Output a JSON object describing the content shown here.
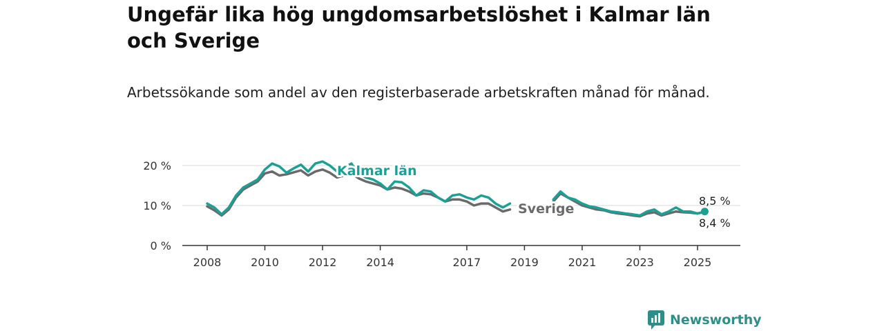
{
  "header": {
    "title": "Ungefär lika hög ungdomsarbetslöshet i Kalmar län och Sverige",
    "subtitle": "Arbetssökande som andel av den registerbaserade arbetskraften månad för månad."
  },
  "brand": {
    "name": "Newsworthy",
    "icon": "newsworthy-logo-icon",
    "color": "#2e8e89"
  },
  "chart_data": {
    "type": "line",
    "title": "Ungefär lika hög ungdomsarbetslöshet i Kalmar län och Sverige",
    "subtitle": "Arbetssökande som andel av den registerbaserade arbetskraften månad för månad.",
    "xlabel": "",
    "ylabel": "",
    "x_ticks": [
      "2008",
      "2010",
      "2012",
      "2014",
      "2017",
      "2019",
      "2021",
      "2023",
      "2025"
    ],
    "y_ticks": [
      "0 %",
      "10 %",
      "20 %"
    ],
    "ylim": [
      0,
      22
    ],
    "grid": true,
    "series": [
      {
        "name": "Kalmar län",
        "color": "#1aa196",
        "points": [
          [
            "2008-01",
            10.5
          ],
          [
            "2008-04",
            9.5
          ],
          [
            "2008-07",
            7.8
          ],
          [
            "2008-10",
            9.5
          ],
          [
            "2009-01",
            12.5
          ],
          [
            "2009-04",
            14.5
          ],
          [
            "2009-07",
            15.5
          ],
          [
            "2009-10",
            16.5
          ],
          [
            "2010-01",
            19.0
          ],
          [
            "2010-04",
            20.5
          ],
          [
            "2010-07",
            19.8
          ],
          [
            "2010-10",
            18.2
          ],
          [
            "2011-01",
            19.3
          ],
          [
            "2011-04",
            20.2
          ],
          [
            "2011-07",
            18.5
          ],
          [
            "2011-10",
            20.5
          ],
          [
            "2012-01",
            21.0
          ],
          [
            "2012-04",
            20.0
          ],
          [
            "2012-07",
            18.5
          ],
          [
            "2012-10",
            19.5
          ],
          [
            "2013-01",
            20.5
          ],
          [
            "2013-04",
            18.0
          ],
          [
            "2013-07",
            17.0
          ],
          [
            "2013-10",
            16.5
          ],
          [
            "2014-01",
            15.5
          ],
          [
            "2014-04",
            14.0
          ],
          [
            "2014-07",
            16.0
          ],
          [
            "2014-10",
            15.8
          ],
          [
            "2015-01",
            14.5
          ],
          [
            "2015-04",
            12.5
          ],
          [
            "2015-07",
            13.8
          ],
          [
            "2015-10",
            13.5
          ],
          [
            "2016-01",
            12.0
          ],
          [
            "2016-04",
            11.0
          ],
          [
            "2016-07",
            12.5
          ],
          [
            "2016-10",
            12.8
          ],
          [
            "2017-01",
            12.0
          ],
          [
            "2017-04",
            11.5
          ],
          [
            "2017-07",
            12.5
          ],
          [
            "2017-10",
            12.0
          ],
          [
            "2018-01",
            10.5
          ],
          [
            "2018-04",
            9.5
          ],
          [
            "2018-07",
            10.5
          ],
          [
            "2020-01",
            11.5
          ],
          [
            "2020-04",
            13.5
          ],
          [
            "2020-07",
            12.0
          ],
          [
            "2020-10",
            11.5
          ],
          [
            "2021-01",
            10.5
          ],
          [
            "2021-04",
            9.8
          ],
          [
            "2021-07",
            9.5
          ],
          [
            "2021-10",
            9.0
          ],
          [
            "2022-01",
            8.5
          ],
          [
            "2022-04",
            8.3
          ],
          [
            "2022-07",
            8.0
          ],
          [
            "2022-10",
            7.8
          ],
          [
            "2023-01",
            7.5
          ],
          [
            "2023-04",
            8.5
          ],
          [
            "2023-07",
            9.0
          ],
          [
            "2023-10",
            7.8
          ],
          [
            "2024-01",
            8.5
          ],
          [
            "2024-04",
            9.5
          ],
          [
            "2024-07",
            8.5
          ],
          [
            "2024-10",
            8.5
          ],
          [
            "2025-01",
            8.0
          ],
          [
            "2025-04",
            8.5
          ]
        ],
        "end_label": "8,5 %"
      },
      {
        "name": "Sverige",
        "color": "#6a6a6a",
        "points": [
          [
            "2008-01",
            9.8
          ],
          [
            "2008-04",
            8.8
          ],
          [
            "2008-07",
            7.5
          ],
          [
            "2008-10",
            9.0
          ],
          [
            "2009-01",
            12.0
          ],
          [
            "2009-04",
            14.0
          ],
          [
            "2009-07",
            15.0
          ],
          [
            "2009-10",
            16.0
          ],
          [
            "2010-01",
            18.0
          ],
          [
            "2010-04",
            18.5
          ],
          [
            "2010-07",
            17.5
          ],
          [
            "2010-10",
            17.8
          ],
          [
            "2011-01",
            18.3
          ],
          [
            "2011-04",
            18.8
          ],
          [
            "2011-07",
            17.5
          ],
          [
            "2011-10",
            18.5
          ],
          [
            "2012-01",
            19.0
          ],
          [
            "2012-04",
            18.2
          ],
          [
            "2012-07",
            17.0
          ],
          [
            "2012-10",
            17.5
          ],
          [
            "2013-01",
            18.0
          ],
          [
            "2013-04",
            16.8
          ],
          [
            "2013-07",
            16.0
          ],
          [
            "2013-10",
            15.5
          ],
          [
            "2014-01",
            15.0
          ],
          [
            "2014-04",
            14.0
          ],
          [
            "2014-07",
            14.5
          ],
          [
            "2014-10",
            14.2
          ],
          [
            "2015-01",
            13.5
          ],
          [
            "2015-04",
            12.5
          ],
          [
            "2015-07",
            13.0
          ],
          [
            "2015-10",
            12.8
          ],
          [
            "2016-01",
            12.0
          ],
          [
            "2016-04",
            11.0
          ],
          [
            "2016-07",
            11.5
          ],
          [
            "2016-10",
            11.5
          ],
          [
            "2017-01",
            11.0
          ],
          [
            "2017-04",
            10.0
          ],
          [
            "2017-07",
            10.5
          ],
          [
            "2017-10",
            10.5
          ],
          [
            "2018-01",
            9.5
          ],
          [
            "2018-04",
            8.5
          ],
          [
            "2018-07",
            9.0
          ],
          [
            "2020-01",
            11.0
          ],
          [
            "2020-04",
            13.0
          ],
          [
            "2020-07",
            12.0
          ],
          [
            "2020-10",
            11.0
          ],
          [
            "2021-01",
            10.0
          ],
          [
            "2021-04",
            9.5
          ],
          [
            "2021-07",
            9.0
          ],
          [
            "2021-10",
            8.8
          ],
          [
            "2022-01",
            8.3
          ],
          [
            "2022-04",
            8.0
          ],
          [
            "2022-07",
            7.8
          ],
          [
            "2022-10",
            7.5
          ],
          [
            "2023-01",
            7.3
          ],
          [
            "2023-04",
            8.0
          ],
          [
            "2023-07",
            8.3
          ],
          [
            "2023-10",
            7.5
          ],
          [
            "2024-01",
            8.0
          ],
          [
            "2024-04",
            8.5
          ],
          [
            "2024-07",
            8.3
          ],
          [
            "2024-10",
            8.2
          ],
          [
            "2025-01",
            8.0
          ],
          [
            "2025-04",
            8.4
          ]
        ],
        "end_label": "8,4 %"
      }
    ]
  }
}
